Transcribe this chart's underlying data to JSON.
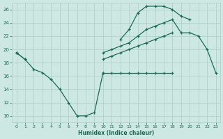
{
  "xlabel": "Humidex (Indice chaleur)",
  "background_color": "#cde8e2",
  "grid_color": "#aacfc8",
  "line_color": "#1a6b5a",
  "x_values": [
    0,
    1,
    2,
    3,
    4,
    5,
    6,
    7,
    8,
    9,
    10,
    11,
    12,
    13,
    14,
    15,
    16,
    17,
    18,
    19,
    20,
    21,
    22,
    23
  ],
  "line_dip_y": [
    19.5,
    18.5,
    17.0,
    16.5,
    15.5,
    14.0,
    12.0,
    10.0,
    10.0,
    10.5,
    16.5,
    null,
    null,
    null,
    null,
    null,
    null,
    null,
    null,
    null,
    null,
    null,
    null,
    null
  ],
  "line_top_y": [
    null,
    null,
    null,
    null,
    null,
    null,
    null,
    null,
    null,
    null,
    null,
    null,
    21.5,
    23.0,
    25.5,
    26.5,
    26.5,
    26.5,
    26.0,
    25.0,
    24.5,
    null,
    null,
    null
  ],
  "line_mid_y": [
    19.5,
    null,
    null,
    null,
    null,
    null,
    null,
    null,
    null,
    null,
    19.5,
    20.0,
    20.5,
    21.0,
    22.0,
    23.0,
    23.5,
    24.0,
    24.5,
    22.5,
    22.5,
    22.0,
    20.0,
    16.5
  ],
  "line_low_y": [
    19.5,
    18.5,
    null,
    null,
    null,
    null,
    null,
    null,
    null,
    null,
    18.5,
    19.0,
    19.5,
    20.0,
    20.5,
    21.0,
    21.5,
    22.0,
    22.5,
    null,
    null,
    null,
    null,
    null
  ],
  "line_flat_y": [
    null,
    null,
    null,
    null,
    null,
    null,
    null,
    null,
    null,
    null,
    16.5,
    16.5,
    16.5,
    16.5,
    16.5,
    16.5,
    16.5,
    16.5,
    16.5,
    null,
    null,
    null,
    null,
    null
  ],
  "ylim": [
    9,
    27
  ],
  "xlim": [
    -0.5,
    23.5
  ],
  "yticks": [
    10,
    12,
    14,
    16,
    18,
    20,
    22,
    24,
    26
  ],
  "xticks": [
    0,
    1,
    2,
    3,
    4,
    5,
    6,
    7,
    8,
    9,
    10,
    11,
    12,
    13,
    14,
    15,
    16,
    17,
    18,
    19,
    20,
    21,
    22,
    23
  ]
}
